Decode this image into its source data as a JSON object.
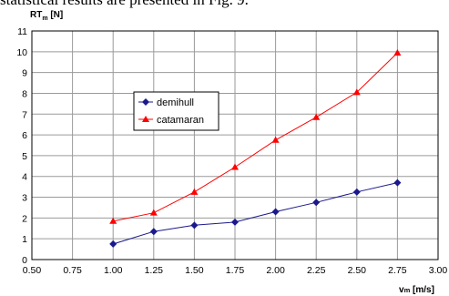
{
  "page_text": {
    "cut_off_line": "statistical results are presented in Fig. 9."
  },
  "chart_data": {
    "type": "line",
    "ylabel_main": "RT",
    "ylabel_sub": "m",
    "ylabel_unit": " [N]",
    "xlabel_main": "v",
    "xlabel_sub": "m",
    "xlabel_unit": " [m/s]",
    "xlim": [
      0.5,
      3.0
    ],
    "ylim": [
      0,
      11
    ],
    "x_ticks": [
      "0.50",
      "0.75",
      "1.00",
      "1.25",
      "1.50",
      "1.75",
      "2.00",
      "2.25",
      "2.50",
      "2.75",
      "3.00"
    ],
    "y_ticks": [
      "0",
      "1",
      "2",
      "3",
      "4",
      "5",
      "6",
      "7",
      "8",
      "9",
      "10",
      "11"
    ],
    "grid": true,
    "legend_placement": "upper-left inside plot",
    "x": [
      1.0,
      1.25,
      1.5,
      1.75,
      2.0,
      2.25,
      2.5,
      2.75
    ],
    "series": [
      {
        "name": "demihull",
        "color": "#1a1a8c",
        "marker": "diamond",
        "values": [
          0.75,
          1.35,
          1.65,
          1.8,
          2.3,
          2.75,
          3.25,
          3.7
        ]
      },
      {
        "name": "catamaran",
        "color": "#ff0000",
        "marker": "triangle",
        "values": [
          1.85,
          2.25,
          3.25,
          4.45,
          5.75,
          6.85,
          8.05,
          9.95
        ]
      }
    ]
  }
}
